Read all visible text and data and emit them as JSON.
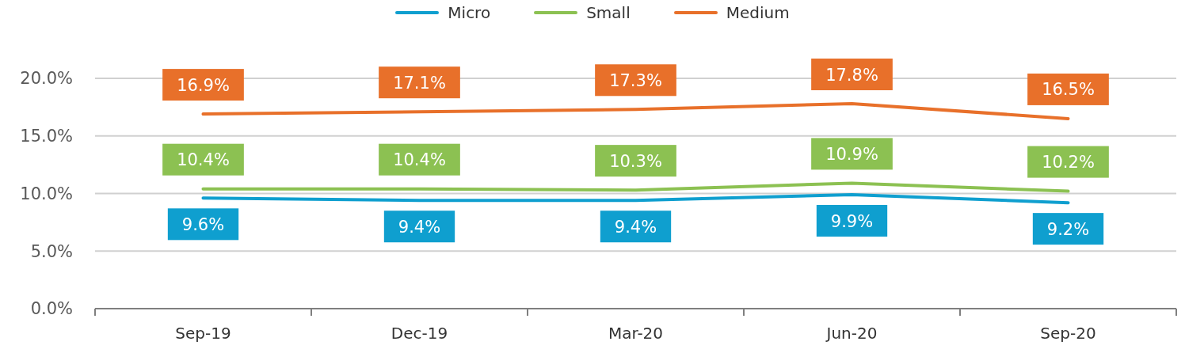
{
  "chart_data": {
    "type": "line",
    "categories": [
      "Sep-19",
      "Dec-19",
      "Mar-20",
      "Jun-20",
      "Sep-20"
    ],
    "series": [
      {
        "name": "Micro",
        "color": "#0f9fcf",
        "values": [
          9.6,
          9.4,
          9.4,
          9.9,
          9.2
        ],
        "value_labels": [
          "9.6%",
          "9.4%",
          "9.4%",
          "9.9%",
          "9.2%"
        ]
      },
      {
        "name": "Small",
        "color": "#8cc152",
        "values": [
          10.4,
          10.4,
          10.3,
          10.9,
          10.2
        ],
        "value_labels": [
          "10.4%",
          "10.4%",
          "10.3%",
          "10.9%",
          "10.2%"
        ]
      },
      {
        "name": "Medium",
        "color": "#e8702a",
        "values": [
          16.9,
          17.1,
          17.3,
          17.8,
          16.5
        ],
        "value_labels": [
          "16.9%",
          "17.1%",
          "17.3%",
          "17.8%",
          "16.5%"
        ]
      }
    ],
    "ylim": [
      0,
      20
    ],
    "yticks": [
      {
        "value": 0,
        "label": "0.0%"
      },
      {
        "value": 5,
        "label": "5.0%"
      },
      {
        "value": 10,
        "label": "10.0%"
      },
      {
        "value": 15,
        "label": "15.0%"
      },
      {
        "value": 20,
        "label": "20.0%"
      }
    ],
    "grid": "y",
    "legend": "top"
  }
}
